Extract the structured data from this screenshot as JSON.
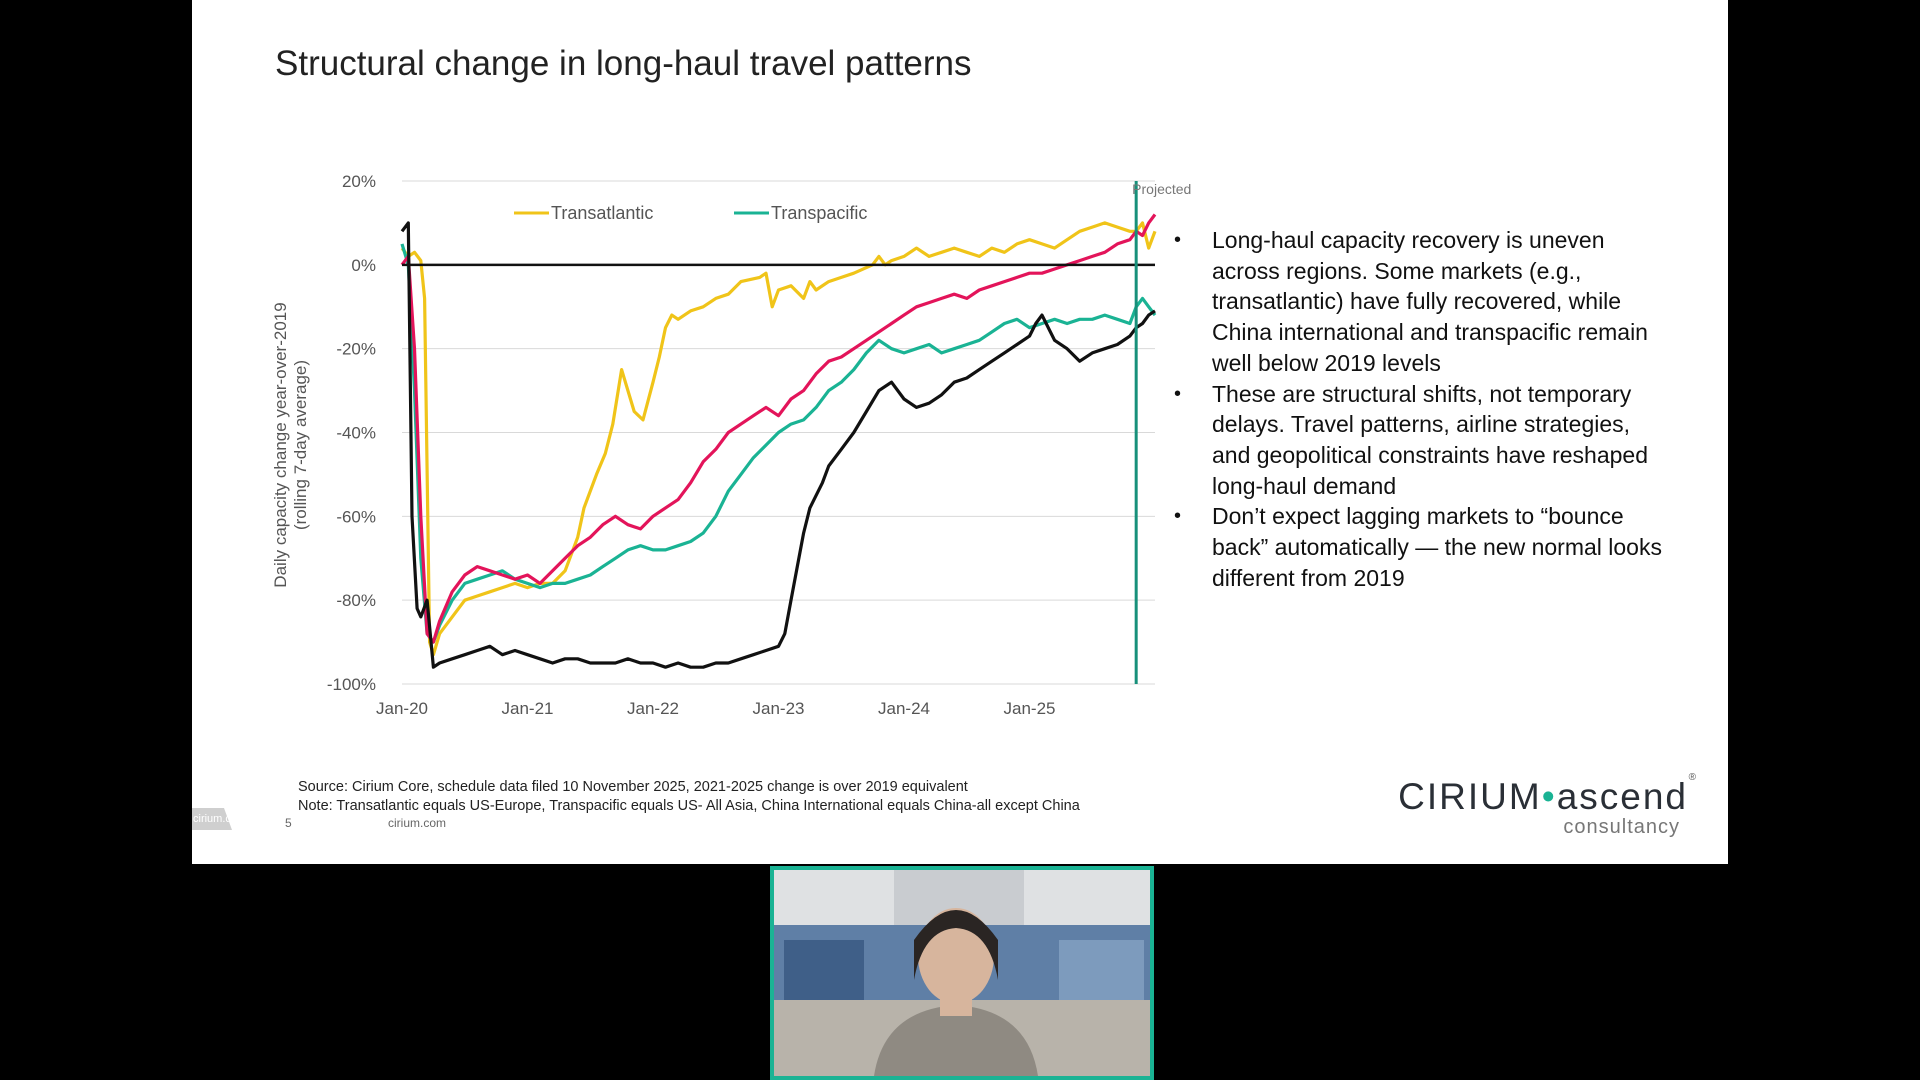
{
  "slide": {
    "title": "Structural change in long-haul travel patterns",
    "bullets": [
      "Long-haul capacity recovery is uneven across regions. Some markets (e.g., transatlantic) have fully recovered, while China international and transpacific remain well below 2019 levels",
      "These are structural shifts, not temporary delays. Travel patterns, airline strategies, and geopolitical constraints have reshaped long-haul demand",
      "Don’t expect lagging markets to “bounce back” automatically — the new normal looks different from 2019"
    ],
    "bullet_glyph": "•",
    "source_note": "Source: Cirium Core, schedule data filed 10 November 2025, 2021-2025 change is over 2019 equivalent",
    "definition_note": "Note: Transatlantic equals US-Europe, Transpacific equals US- All Asia, China International equals China-all except China",
    "page_number": "5",
    "footer_site": "cirium.com",
    "footer_tab": "cirium.com",
    "brand": {
      "part1": "CIRIUM",
      "separator": "•",
      "part2": "ascend",
      "sub": "consultancy",
      "registered": "®"
    }
  },
  "chart_data": {
    "type": "line",
    "title": "",
    "ylabel_line1": "Daily capacity change year-over-2019",
    "ylabel_line2": "(rolling 7-day average)",
    "xlabel": "",
    "ylim": [
      -100,
      20
    ],
    "y_ticks": [
      "20%",
      "0%",
      "-20%",
      "-40%",
      "-60%",
      "-80%",
      "-100%"
    ],
    "y_tick_values": [
      20,
      0,
      -20,
      -40,
      -60,
      -80,
      -100
    ],
    "x_ticks": [
      "Jan-20",
      "Jan-21",
      "Jan-22",
      "Jan-23",
      "Jan-24",
      "Jan-25"
    ],
    "x_tick_values": [
      2020,
      2021,
      2022,
      2023,
      2024,
      2025
    ],
    "xlim": [
      2020,
      2026.0
    ],
    "projected_label": "Projected",
    "projected_from": 2025.85,
    "grid": true,
    "legend_position": "top-left",
    "series": [
      {
        "name": "Transatlantic",
        "color": "#f0c419",
        "x": [
          2020.0,
          2020.05,
          2020.1,
          2020.15,
          2020.18,
          2020.22,
          2020.25,
          2020.3,
          2020.4,
          2020.5,
          2020.6,
          2020.7,
          2020.8,
          2020.9,
          2021.0,
          2021.1,
          2021.2,
          2021.3,
          2021.4,
          2021.45,
          2021.55,
          2021.62,
          2021.68,
          2021.75,
          2021.85,
          2021.92,
          2022.0,
          2022.05,
          2022.1,
          2022.15,
          2022.2,
          2022.3,
          2022.4,
          2022.5,
          2022.6,
          2022.7,
          2022.85,
          2022.9,
          2022.95,
          2023.0,
          2023.1,
          2023.2,
          2023.25,
          2023.3,
          2023.4,
          2023.5,
          2023.6,
          2023.75,
          2023.8,
          2023.85,
          2023.9,
          2024.0,
          2024.1,
          2024.2,
          2024.3,
          2024.4,
          2024.5,
          2024.6,
          2024.7,
          2024.8,
          2024.9,
          2025.0,
          2025.1,
          2025.2,
          2025.3,
          2025.4,
          2025.5,
          2025.6,
          2025.7,
          2025.8,
          2025.85,
          2025.9,
          2025.95,
          2026.0
        ],
        "values": [
          4,
          2,
          3,
          1,
          -8,
          -90,
          -93,
          -88,
          -84,
          -80,
          -79,
          -78,
          -77,
          -76,
          -77,
          -76,
          -76,
          -73,
          -65,
          -58,
          -50,
          -45,
          -38,
          -25,
          -35,
          -37,
          -28,
          -22,
          -15,
          -12,
          -13,
          -11,
          -10,
          -8,
          -7,
          -4,
          -3,
          -2,
          -10,
          -6,
          -5,
          -8,
          -4,
          -6,
          -4,
          -3,
          -2,
          0,
          2,
          0,
          1,
          2,
          4,
          2,
          3,
          4,
          3,
          2,
          4,
          3,
          5,
          6,
          5,
          4,
          6,
          8,
          9,
          10,
          9,
          8,
          8,
          10,
          4,
          8
        ]
      },
      {
        "name": "Transpacific",
        "color": "#1ab394",
        "x": [
          2020.0,
          2020.05,
          2020.1,
          2020.15,
          2020.2,
          2020.25,
          2020.3,
          2020.4,
          2020.5,
          2020.6,
          2020.7,
          2020.8,
          2020.9,
          2021.0,
          2021.1,
          2021.2,
          2021.3,
          2021.4,
          2021.5,
          2021.6,
          2021.7,
          2021.8,
          2021.9,
          2022.0,
          2022.1,
          2022.2,
          2022.3,
          2022.4,
          2022.5,
          2022.6,
          2022.7,
          2022.8,
          2022.9,
          2023.0,
          2023.1,
          2023.2,
          2023.3,
          2023.4,
          2023.5,
          2023.6,
          2023.7,
          2023.8,
          2023.9,
          2024.0,
          2024.1,
          2024.2,
          2024.3,
          2024.4,
          2024.5,
          2024.6,
          2024.7,
          2024.8,
          2024.9,
          2025.0,
          2025.1,
          2025.2,
          2025.3,
          2025.4,
          2025.5,
          2025.6,
          2025.7,
          2025.8,
          2025.85,
          2025.9,
          2025.95,
          2026.0
        ],
        "values": [
          5,
          0,
          -30,
          -70,
          -88,
          -90,
          -86,
          -80,
          -76,
          -75,
          -74,
          -73,
          -75,
          -76,
          -77,
          -76,
          -76,
          -75,
          -74,
          -72,
          -70,
          -68,
          -67,
          -68,
          -68,
          -67,
          -66,
          -64,
          -60,
          -54,
          -50,
          -46,
          -43,
          -40,
          -38,
          -37,
          -34,
          -30,
          -28,
          -25,
          -21,
          -18,
          -20,
          -21,
          -20,
          -19,
          -21,
          -20,
          -19,
          -18,
          -16,
          -14,
          -13,
          -15,
          -14,
          -13,
          -14,
          -13,
          -13,
          -12,
          -13,
          -14,
          -10,
          -8,
          -10,
          -12
        ]
      },
      {
        "name": "",
        "color": "#e3145a",
        "x": [
          2020.0,
          2020.05,
          2020.1,
          2020.15,
          2020.2,
          2020.25,
          2020.3,
          2020.4,
          2020.5,
          2020.6,
          2020.7,
          2020.8,
          2020.9,
          2021.0,
          2021.1,
          2021.2,
          2021.3,
          2021.4,
          2021.5,
          2021.6,
          2021.7,
          2021.8,
          2021.9,
          2022.0,
          2022.1,
          2022.2,
          2022.3,
          2022.4,
          2022.5,
          2022.6,
          2022.7,
          2022.8,
          2022.9,
          2023.0,
          2023.1,
          2023.2,
          2023.3,
          2023.4,
          2023.5,
          2023.6,
          2023.7,
          2023.8,
          2023.9,
          2024.0,
          2024.1,
          2024.2,
          2024.3,
          2024.4,
          2024.5,
          2024.6,
          2024.7,
          2024.8,
          2024.9,
          2025.0,
          2025.1,
          2025.2,
          2025.3,
          2025.4,
          2025.5,
          2025.6,
          2025.7,
          2025.8,
          2025.85,
          2025.9,
          2025.95,
          2026.0
        ],
        "values": [
          0,
          2,
          -20,
          -60,
          -88,
          -90,
          -85,
          -78,
          -74,
          -72,
          -73,
          -74,
          -75,
          -74,
          -76,
          -73,
          -70,
          -67,
          -65,
          -62,
          -60,
          -62,
          -63,
          -60,
          -58,
          -56,
          -52,
          -47,
          -44,
          -40,
          -38,
          -36,
          -34,
          -36,
          -32,
          -30,
          -26,
          -23,
          -22,
          -20,
          -18,
          -16,
          -14,
          -12,
          -10,
          -9,
          -8,
          -7,
          -8,
          -6,
          -5,
          -4,
          -3,
          -2,
          -2,
          -1,
          0,
          1,
          2,
          3,
          5,
          6,
          8,
          7,
          10,
          12
        ]
      },
      {
        "name": "",
        "color": "#111111",
        "x": [
          2020.0,
          2020.05,
          2020.08,
          2020.12,
          2020.15,
          2020.2,
          2020.25,
          2020.3,
          2020.4,
          2020.5,
          2020.6,
          2020.7,
          2020.8,
          2020.9,
          2021.0,
          2021.1,
          2021.2,
          2021.3,
          2021.4,
          2021.5,
          2021.6,
          2021.7,
          2021.8,
          2021.9,
          2022.0,
          2022.1,
          2022.2,
          2022.3,
          2022.4,
          2022.5,
          2022.6,
          2022.7,
          2022.8,
          2022.9,
          2023.0,
          2023.05,
          2023.1,
          2023.15,
          2023.2,
          2023.25,
          2023.3,
          2023.35,
          2023.4,
          2023.5,
          2023.6,
          2023.7,
          2023.8,
          2023.9,
          2024.0,
          2024.1,
          2024.2,
          2024.3,
          2024.4,
          2024.5,
          2024.6,
          2024.7,
          2024.8,
          2024.9,
          2025.0,
          2025.05,
          2025.1,
          2025.2,
          2025.3,
          2025.4,
          2025.5,
          2025.6,
          2025.7,
          2025.8,
          2025.85,
          2025.9,
          2025.95,
          2026.0
        ],
        "values": [
          8,
          10,
          -60,
          -82,
          -84,
          -80,
          -96,
          -95,
          -94,
          -93,
          -92,
          -91,
          -93,
          -92,
          -93,
          -94,
          -95,
          -94,
          -94,
          -95,
          -95,
          -95,
          -94,
          -95,
          -95,
          -96,
          -95,
          -96,
          -96,
          -95,
          -95,
          -94,
          -93,
          -92,
          -91,
          -88,
          -80,
          -72,
          -64,
          -58,
          -55,
          -52,
          -48,
          -44,
          -40,
          -35,
          -30,
          -28,
          -32,
          -34,
          -33,
          -31,
          -28,
          -27,
          -25,
          -23,
          -21,
          -19,
          -17,
          -14,
          -12,
          -18,
          -20,
          -23,
          -21,
          -20,
          -19,
          -17,
          -15,
          -14,
          -12,
          -11
        ]
      }
    ]
  },
  "video": {
    "participant_border": "#1ab394"
  }
}
